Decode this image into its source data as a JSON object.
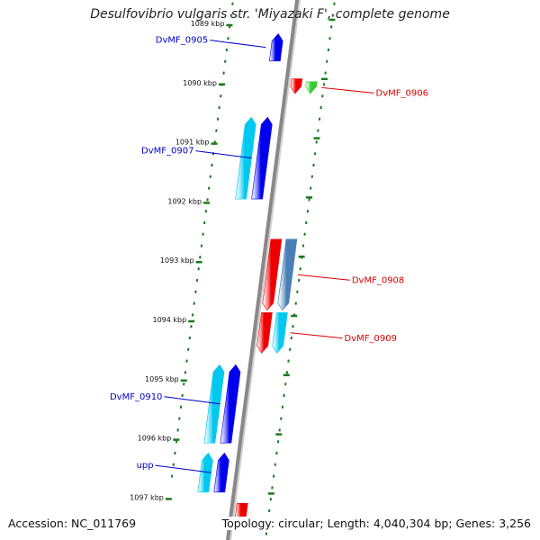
{
  "title": "Desulfovibrio vulgaris str. 'Miyazaki F', complete genome",
  "footer": {
    "accession": "Accession: NC_011769",
    "info": "Topology: circular; Length: 4,040,304 bp; Genes: 3,256"
  },
  "colors": {
    "backbone": "#888888",
    "ticks": "#1a7a1a",
    "forward_label": "#0000cc",
    "reverse_label": "#dd0000",
    "forward_gene_strong": "#0000ee",
    "forward_gene_light": "#00c8ee",
    "reverse_gene_strong": "#ee0000",
    "reverse_gene_green": "#33cc33",
    "reverse_gene_steel": "#4a7fb5",
    "reverse_gene_light": "#00c8ee"
  },
  "kbp_ticks": [
    {
      "kb": 1089,
      "label": "1089 kbp"
    },
    {
      "kb": 1090,
      "label": "1090 kbp"
    },
    {
      "kb": 1091,
      "label": "1091 kbp"
    },
    {
      "kb": 1092,
      "label": "1092 kbp"
    },
    {
      "kb": 1093,
      "label": "1093 kbp"
    },
    {
      "kb": 1094,
      "label": "1094 kbp"
    },
    {
      "kb": 1095,
      "label": "1095 kbp"
    },
    {
      "kb": 1096,
      "label": "1096 kbp"
    },
    {
      "kb": 1097,
      "label": "1097 kbp"
    }
  ],
  "genes": [
    {
      "strand": "forward",
      "start_kb": 1089.19,
      "end_kb": 1089.65,
      "color": "forward_gene_strong",
      "label": "DvMF_0905"
    },
    {
      "strand": "reverse",
      "start_kb": 1089.95,
      "end_kb": 1090.2,
      "color": "reverse_gene_strong",
      "label": null
    },
    {
      "strand": "reverse",
      "start_kb": 1090.0,
      "end_kb": 1090.2,
      "color": "reverse_gene_green",
      "label": "DvMF_0906"
    },
    {
      "strand": "forward",
      "start_kb": 1090.6,
      "end_kb": 1091.98,
      "color": "forward_gene_light",
      "label": null
    },
    {
      "strand": "forward",
      "start_kb": 1090.6,
      "end_kb": 1091.98,
      "color": "forward_gene_strong",
      "label": "DvMF_0907"
    },
    {
      "strand": "reverse",
      "start_kb": 1092.66,
      "end_kb": 1093.86,
      "color": "reverse_gene_strong",
      "label": null
    },
    {
      "strand": "reverse",
      "start_kb": 1092.66,
      "end_kb": 1093.86,
      "color": "reverse_gene_steel",
      "label": "DvMF_0908"
    },
    {
      "strand": "reverse",
      "start_kb": 1093.9,
      "end_kb": 1094.58,
      "color": "reverse_gene_strong",
      "label": null
    },
    {
      "strand": "reverse",
      "start_kb": 1093.9,
      "end_kb": 1094.58,
      "color": "reverse_gene_light",
      "label": "DvMF_0909"
    },
    {
      "strand": "forward",
      "start_kb": 1094.78,
      "end_kb": 1096.1,
      "color": "forward_gene_light",
      "label": null
    },
    {
      "strand": "forward",
      "start_kb": 1094.78,
      "end_kb": 1096.1,
      "color": "forward_gene_strong",
      "label": "DvMF_0910"
    },
    {
      "strand": "forward",
      "start_kb": 1096.27,
      "end_kb": 1096.93,
      "color": "forward_gene_light",
      "label": null
    },
    {
      "strand": "forward",
      "start_kb": 1096.27,
      "end_kb": 1096.93,
      "color": "forward_gene_strong",
      "label": "upp"
    },
    {
      "strand": "reverse",
      "start_kb": 1097.12,
      "end_kb": 1097.5,
      "color": "reverse_gene_strong",
      "label": null
    }
  ]
}
